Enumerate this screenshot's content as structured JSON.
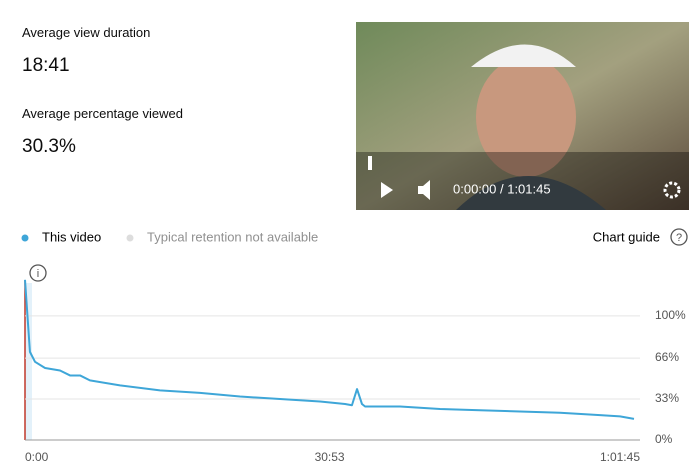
{
  "metrics": [
    {
      "label": "Average view duration",
      "value": "18:41"
    },
    {
      "label": "Average percentage viewed",
      "value": "30.3%"
    }
  ],
  "player": {
    "time": "0:00:00 / 1:01:45"
  },
  "chart_guide": "Chart guide",
  "chart_data": {
    "type": "line",
    "x": [
      0,
      30,
      61,
      122,
      213,
      274,
      335,
      395,
      578,
      821,
      1065,
      1308,
      1551,
      1795,
      1947,
      1989,
      2020,
      2050,
      2069,
      2282,
      2525,
      2768,
      3012,
      3255,
      3498,
      3620,
      3705
    ],
    "series": [
      {
        "name": "This video",
        "color": "#3ea6d8",
        "values": [
          129,
          71,
          63,
          58,
          56,
          52,
          52,
          48,
          44,
          40,
          38,
          35,
          33,
          31,
          29,
          28,
          41,
          29,
          27,
          27,
          25,
          24,
          23,
          22,
          20,
          19,
          17
        ]
      }
    ],
    "comparison_label": "Typical retention not available",
    "xlim": [
      0,
      3705
    ],
    "xticks": [
      {
        "value": 0,
        "label": "0:00"
      },
      {
        "value": 1853,
        "label": "30:53"
      },
      {
        "value": 3705,
        "label": "1:01:45"
      }
    ],
    "ylim": [
      0,
      145
    ],
    "yticks": [
      {
        "value": 0,
        "label": "0%"
      },
      {
        "value": 33,
        "label": "33%"
      },
      {
        "value": 66,
        "label": "66%"
      },
      {
        "value": 100,
        "label": "100%"
      }
    ],
    "grid": true
  }
}
